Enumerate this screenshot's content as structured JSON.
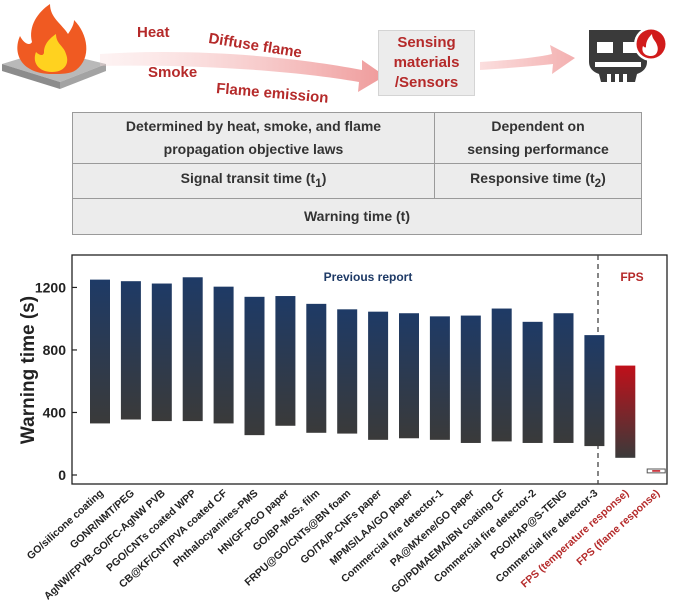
{
  "diagram": {
    "arrow_labels": {
      "heat": "Heat",
      "diffuse": "Diffuse flame",
      "smoke": "Smoke",
      "flame_emission": "Flame emission"
    },
    "sensor_box": {
      "line1": "Sensing",
      "line2": "materials",
      "line3": "/Sensors"
    },
    "table": {
      "determined": {
        "line1": "Determined by heat, smoke, and flame",
        "line2": "propagation objective laws"
      },
      "dependent": {
        "line1": "Dependent on",
        "line2": "sensing performance"
      },
      "signal": {
        "text": "Signal transit time (t",
        "sub": "1",
        "close": ")"
      },
      "responsive": {
        "text": "Responsive time (t",
        "sub": "2",
        "close": ")"
      },
      "warning": "Warning time (t)"
    },
    "icons": [
      "fire-icon",
      "alarm-icon"
    ]
  },
  "chart_data": {
    "type": "bar",
    "ylabel": "Warning time (s)",
    "yticks": [
      0,
      400,
      800,
      1200
    ],
    "ylim": [
      -60,
      1400
    ],
    "annotations": {
      "previous": "Previous report",
      "fps": "FPS"
    },
    "colors": {
      "bar_top": "#1e3a66",
      "bar_bottom": "#3a3a3a",
      "fps_top": "#c0101a",
      "fps_bottom": "#3a3a3a",
      "fps_text": "#b52a2a",
      "prev_text": "#1e3a66"
    },
    "bars": [
      {
        "label": "GO/silicone coating",
        "low": 330,
        "high": 1250
      },
      {
        "label": "GONR/NMT/PEG",
        "low": 355,
        "high": 1240
      },
      {
        "label": "AgNW/FPVB-GO/FC-AgNW PVB",
        "low": 345,
        "high": 1225
      },
      {
        "label": "PGO/CNTs coated WPP",
        "low": 345,
        "high": 1265
      },
      {
        "label": "CB@KF/CNT/PVA coated CF",
        "low": 330,
        "high": 1205
      },
      {
        "label": "Phthalocyanines-PMS",
        "low": 255,
        "high": 1140
      },
      {
        "label": "HN/GF-PGO paper",
        "low": 315,
        "high": 1145
      },
      {
        "label": "GO/BP-MoS₂ film",
        "low": 270,
        "high": 1095
      },
      {
        "label": "FRPU@GO/CNTs@BN foam",
        "low": 265,
        "high": 1060
      },
      {
        "label": "GO/TA/P-CNFs paper",
        "low": 225,
        "high": 1045
      },
      {
        "label": "MPMS/LAA/GO paper",
        "low": 235,
        "high": 1035
      },
      {
        "label": "Commercial fire detector-1",
        "low": 225,
        "high": 1015
      },
      {
        "label": "PA@MXene/GO paper",
        "low": 205,
        "high": 1020
      },
      {
        "label": "GO/PDMAEMA/BN coating CF",
        "low": 215,
        "high": 1065
      },
      {
        "label": "Commercial fire detector-2",
        "low": 205,
        "high": 980
      },
      {
        "label": "PGO/HAP@S-TENG",
        "low": 205,
        "high": 1035
      },
      {
        "label": "Commercial fire detector-3",
        "low": 185,
        "high": 895
      },
      {
        "label": "FPS (temperature response)",
        "low": 110,
        "high": 700,
        "fps": true
      },
      {
        "label": "FPS (flame response)",
        "low": 20,
        "high": 32,
        "fps": true,
        "thin": true
      }
    ]
  }
}
